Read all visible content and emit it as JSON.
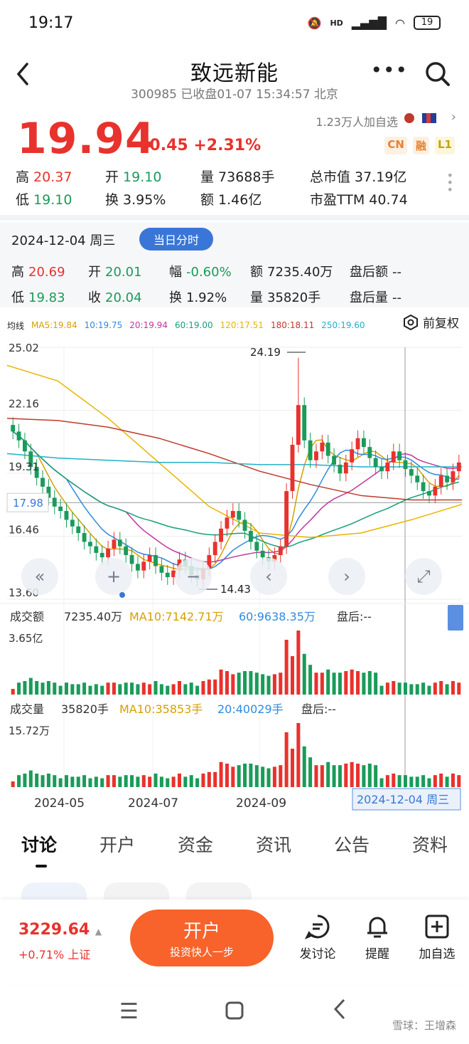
{
  "status": {
    "time": "19:17",
    "network": "HD",
    "battery": "19"
  },
  "header": {
    "title": "致远新能",
    "subtitle": "300985 已收盘01-07 15:34:57 北京"
  },
  "quote": {
    "price": "19.94",
    "change": "+0.45 +2.31%",
    "watch_count": "1.23万人加自选",
    "badges": [
      "CN",
      "融",
      "L1"
    ],
    "row1": [
      {
        "label": "高",
        "value": "20.37",
        "color": "red"
      },
      {
        "label": "开",
        "value": "19.10",
        "color": "green"
      },
      {
        "label": "量",
        "value": "73688手",
        "color": "dark"
      },
      {
        "label": "总市值",
        "value": "37.19亿",
        "color": "dark"
      }
    ],
    "row2": [
      {
        "label": "低",
        "value": "19.10",
        "color": "green"
      },
      {
        "label": "换",
        "value": "3.95%",
        "color": "dark"
      },
      {
        "label": "额",
        "value": "1.46亿",
        "color": "dark"
      },
      {
        "label": "市盈TTM",
        "value": "40.74",
        "color": "dark"
      }
    ]
  },
  "day": {
    "date": "2024-12-04 周三",
    "button": "当日分时",
    "row1": [
      {
        "label": "高",
        "value": "20.69",
        "color": "red"
      },
      {
        "label": "开",
        "value": "20.01",
        "color": "green"
      },
      {
        "label": "幅",
        "value": "-0.60%",
        "color": "green"
      },
      {
        "label": "额",
        "value": "7235.40万",
        "color": "dark"
      },
      {
        "label": "盘后额",
        "value": "--",
        "color": "dark"
      }
    ],
    "row2": [
      {
        "label": "低",
        "value": "19.83",
        "color": "green"
      },
      {
        "label": "收",
        "value": "20.04",
        "color": "green"
      },
      {
        "label": "换",
        "value": "1.92%",
        "color": "dark"
      },
      {
        "label": "量",
        "value": "35820手",
        "color": "dark"
      },
      {
        "label": "盘后量",
        "value": "--",
        "color": "dark"
      }
    ]
  },
  "ma_legend": {
    "label": "均线",
    "items": [
      {
        "text": "MA5:19.84",
        "color": "#d6a000"
      },
      {
        "text": "10:19.75",
        "color": "#2f8ae0"
      },
      {
        "text": "20:19.94",
        "color": "#c2389e"
      },
      {
        "text": "60:19.00",
        "color": "#16a07a"
      },
      {
        "text": "120:17.51",
        "color": "#e8b400"
      },
      {
        "text": "180:18.11",
        "color": "#c0392b"
      },
      {
        "text": "250:19.60",
        "color": "#20b0c8"
      }
    ],
    "fuquan": "前复权"
  },
  "chart_data": {
    "type": "candlestick",
    "price_ticks": [
      "25.02",
      "22.16",
      "19.31",
      "16.46",
      "13.60"
    ],
    "crosshair_price": "17.98",
    "high_marker": "24.19",
    "low_marker": "14.43",
    "x_ticks": [
      "2024-05",
      "2024-07",
      "2024-09",
      "2024-12-04 周三"
    ],
    "amount_panel": {
      "label": "成交额",
      "value": "7235.40万",
      "ma10": "MA10:7142.71万",
      "ma60": "60:9638.35万",
      "after": "盘后:--",
      "max": "3.65亿"
    },
    "volume_panel": {
      "label": "成交量",
      "value": "35820手",
      "ma10": "MA10:35853手",
      "ma20": "20:40029手",
      "after": "盘后:--",
      "max": "15.72万"
    },
    "ylim": [
      13.6,
      25.02
    ],
    "closes": [
      21.2,
      20.8,
      20.3,
      19.6,
      19.1,
      18.7,
      18.2,
      17.8,
      17.6,
      17.2,
      16.9,
      16.6,
      16.2,
      16.0,
      15.7,
      15.5,
      15.9,
      16.3,
      16.0,
      15.6,
      15.2,
      14.9,
      15.3,
      15.6,
      15.1,
      14.8,
      14.6,
      14.9,
      15.4,
      15.1,
      14.7,
      14.5,
      15.0,
      15.6,
      16.2,
      16.8,
      17.3,
      17.6,
      17.2,
      16.7,
      16.2,
      15.8,
      15.5,
      15.3,
      15.6,
      16.0,
      18.5,
      20.6,
      22.4,
      20.8,
      19.9,
      20.3,
      20.7,
      20.1,
      19.7,
      19.3,
      19.8,
      20.4,
      20.9,
      20.5,
      20.0,
      19.6,
      19.4,
      19.8,
      20.3,
      19.9,
      19.5,
      19.2,
      18.9,
      18.5,
      18.3,
      18.7,
      19.2,
      18.9,
      19.4,
      19.8
    ]
  },
  "tabs": [
    "讨论",
    "开户",
    "资金",
    "资讯",
    "公告",
    "资料"
  ],
  "bottom": {
    "index_value": "3229.64",
    "index_change": "+0.71% 上证",
    "open_main": "开户",
    "open_sub": "投资快人一步",
    "actions": [
      {
        "label": "发讨论",
        "icon": "discuss-icon"
      },
      {
        "label": "提醒",
        "icon": "bell-icon"
      },
      {
        "label": "加自选",
        "icon": "add-watch-icon"
      }
    ]
  },
  "watermark": "雪球：王增森"
}
